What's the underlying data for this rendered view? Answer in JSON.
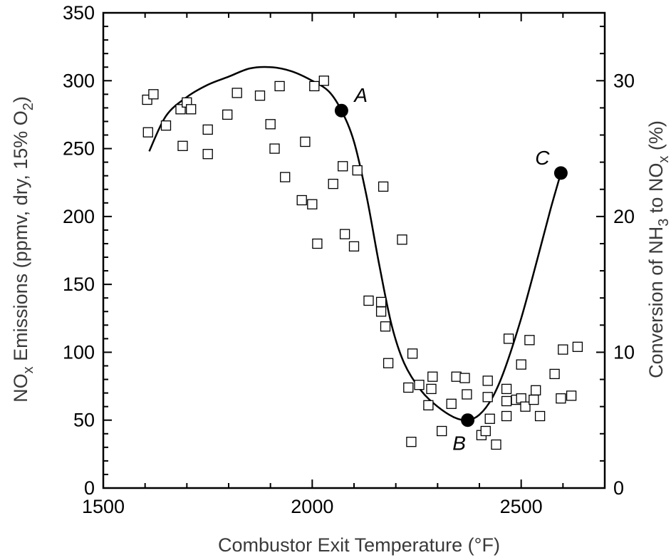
{
  "chart_data": {
    "type": "scatter",
    "title": "",
    "xlabel": "Combustor Exit Temperature  (°F)",
    "ylabel": {
      "prefix": "NO",
      "sub1": "x",
      "middle": " Emissions  (ppmv, dry, 15% O",
      "sub2": "2",
      "suffix": ")"
    },
    "y2label": {
      "prefix": "Conversion of NH",
      "sub1": "3",
      "middle": " to NO",
      "sub2": "x",
      "suffix": "  (%)"
    },
    "xlim": [
      1500,
      2700
    ],
    "ylim": [
      0,
      350
    ],
    "y2lim": [
      0,
      35
    ],
    "x_ticks": [
      "1500",
      "2000",
      "2500"
    ],
    "y_ticks": [
      "0",
      "50",
      "100",
      "150",
      "200",
      "250",
      "300",
      "350"
    ],
    "y2_ticks": [
      "0",
      "10",
      "20",
      "30"
    ],
    "grid": false,
    "scatter_points": [
      [
        1605,
        286
      ],
      [
        1620,
        290
      ],
      [
        1607,
        262
      ],
      [
        1650,
        267
      ],
      [
        1685,
        279
      ],
      [
        1700,
        284
      ],
      [
        1710,
        279
      ],
      [
        1690,
        252
      ],
      [
        1750,
        264
      ],
      [
        1750,
        246
      ],
      [
        1797,
        275
      ],
      [
        1820,
        291
      ],
      [
        1875,
        289
      ],
      [
        1900,
        268
      ],
      [
        1922,
        296
      ],
      [
        1910,
        250
      ],
      [
        1935,
        229
      ],
      [
        1983,
        255
      ],
      [
        1975,
        212
      ],
      [
        2000,
        209
      ],
      [
        2005,
        296
      ],
      [
        2028,
        300
      ],
      [
        2012,
        180
      ],
      [
        2050,
        224
      ],
      [
        2073,
        237
      ],
      [
        2078,
        187
      ],
      [
        2100,
        178
      ],
      [
        2108,
        234
      ],
      [
        2135,
        138
      ],
      [
        2165,
        137
      ],
      [
        2165,
        130
      ],
      [
        2170,
        222
      ],
      [
        2175,
        119
      ],
      [
        2182,
        92
      ],
      [
        2215,
        183
      ],
      [
        2230,
        74
      ],
      [
        2240,
        99
      ],
      [
        2237,
        34
      ],
      [
        2256,
        76
      ],
      [
        2278,
        61
      ],
      [
        2285,
        73
      ],
      [
        2288,
        82
      ],
      [
        2310,
        42
      ],
      [
        2333,
        62
      ],
      [
        2345,
        82
      ],
      [
        2365,
        81
      ],
      [
        2370,
        69
      ],
      [
        2405,
        39
      ],
      [
        2415,
        42
      ],
      [
        2420,
        79
      ],
      [
        2420,
        67
      ],
      [
        2425,
        51
      ],
      [
        2440,
        32
      ],
      [
        2465,
        73
      ],
      [
        2465,
        64
      ],
      [
        2465,
        53
      ],
      [
        2470,
        110
      ],
      [
        2488,
        65
      ],
      [
        2500,
        66
      ],
      [
        2500,
        91
      ],
      [
        2510,
        60
      ],
      [
        2520,
        109
      ],
      [
        2530,
        65
      ],
      [
        2535,
        72
      ],
      [
        2545,
        53
      ],
      [
        2580,
        84
      ],
      [
        2595,
        66
      ],
      [
        2600,
        102
      ],
      [
        2620,
        68
      ],
      [
        2635,
        104
      ]
    ],
    "fit_curve": [
      [
        1610,
        248
      ],
      [
        1650,
        274
      ],
      [
        1700,
        288
      ],
      [
        1750,
        297
      ],
      [
        1800,
        303
      ],
      [
        1850,
        309
      ],
      [
        1900,
        310
      ],
      [
        1950,
        307
      ],
      [
        2000,
        300
      ],
      [
        2040,
        292
      ],
      [
        2070,
        278
      ],
      [
        2100,
        255
      ],
      [
        2130,
        215
      ],
      [
        2160,
        165
      ],
      [
        2190,
        120
      ],
      [
        2220,
        92
      ],
      [
        2260,
        72
      ],
      [
        2300,
        60
      ],
      [
        2340,
        52
      ],
      [
        2372,
        50
      ],
      [
        2400,
        54
      ],
      [
        2430,
        66
      ],
      [
        2460,
        87
      ],
      [
        2500,
        125
      ],
      [
        2540,
        170
      ],
      [
        2570,
        205
      ],
      [
        2595,
        232
      ]
    ],
    "key_points": [
      {
        "label": "A",
        "x": 2070,
        "y": 278
      },
      {
        "label": "B",
        "x": 2372,
        "y": 50
      },
      {
        "label": "C",
        "x": 2595,
        "y": 232
      }
    ]
  }
}
